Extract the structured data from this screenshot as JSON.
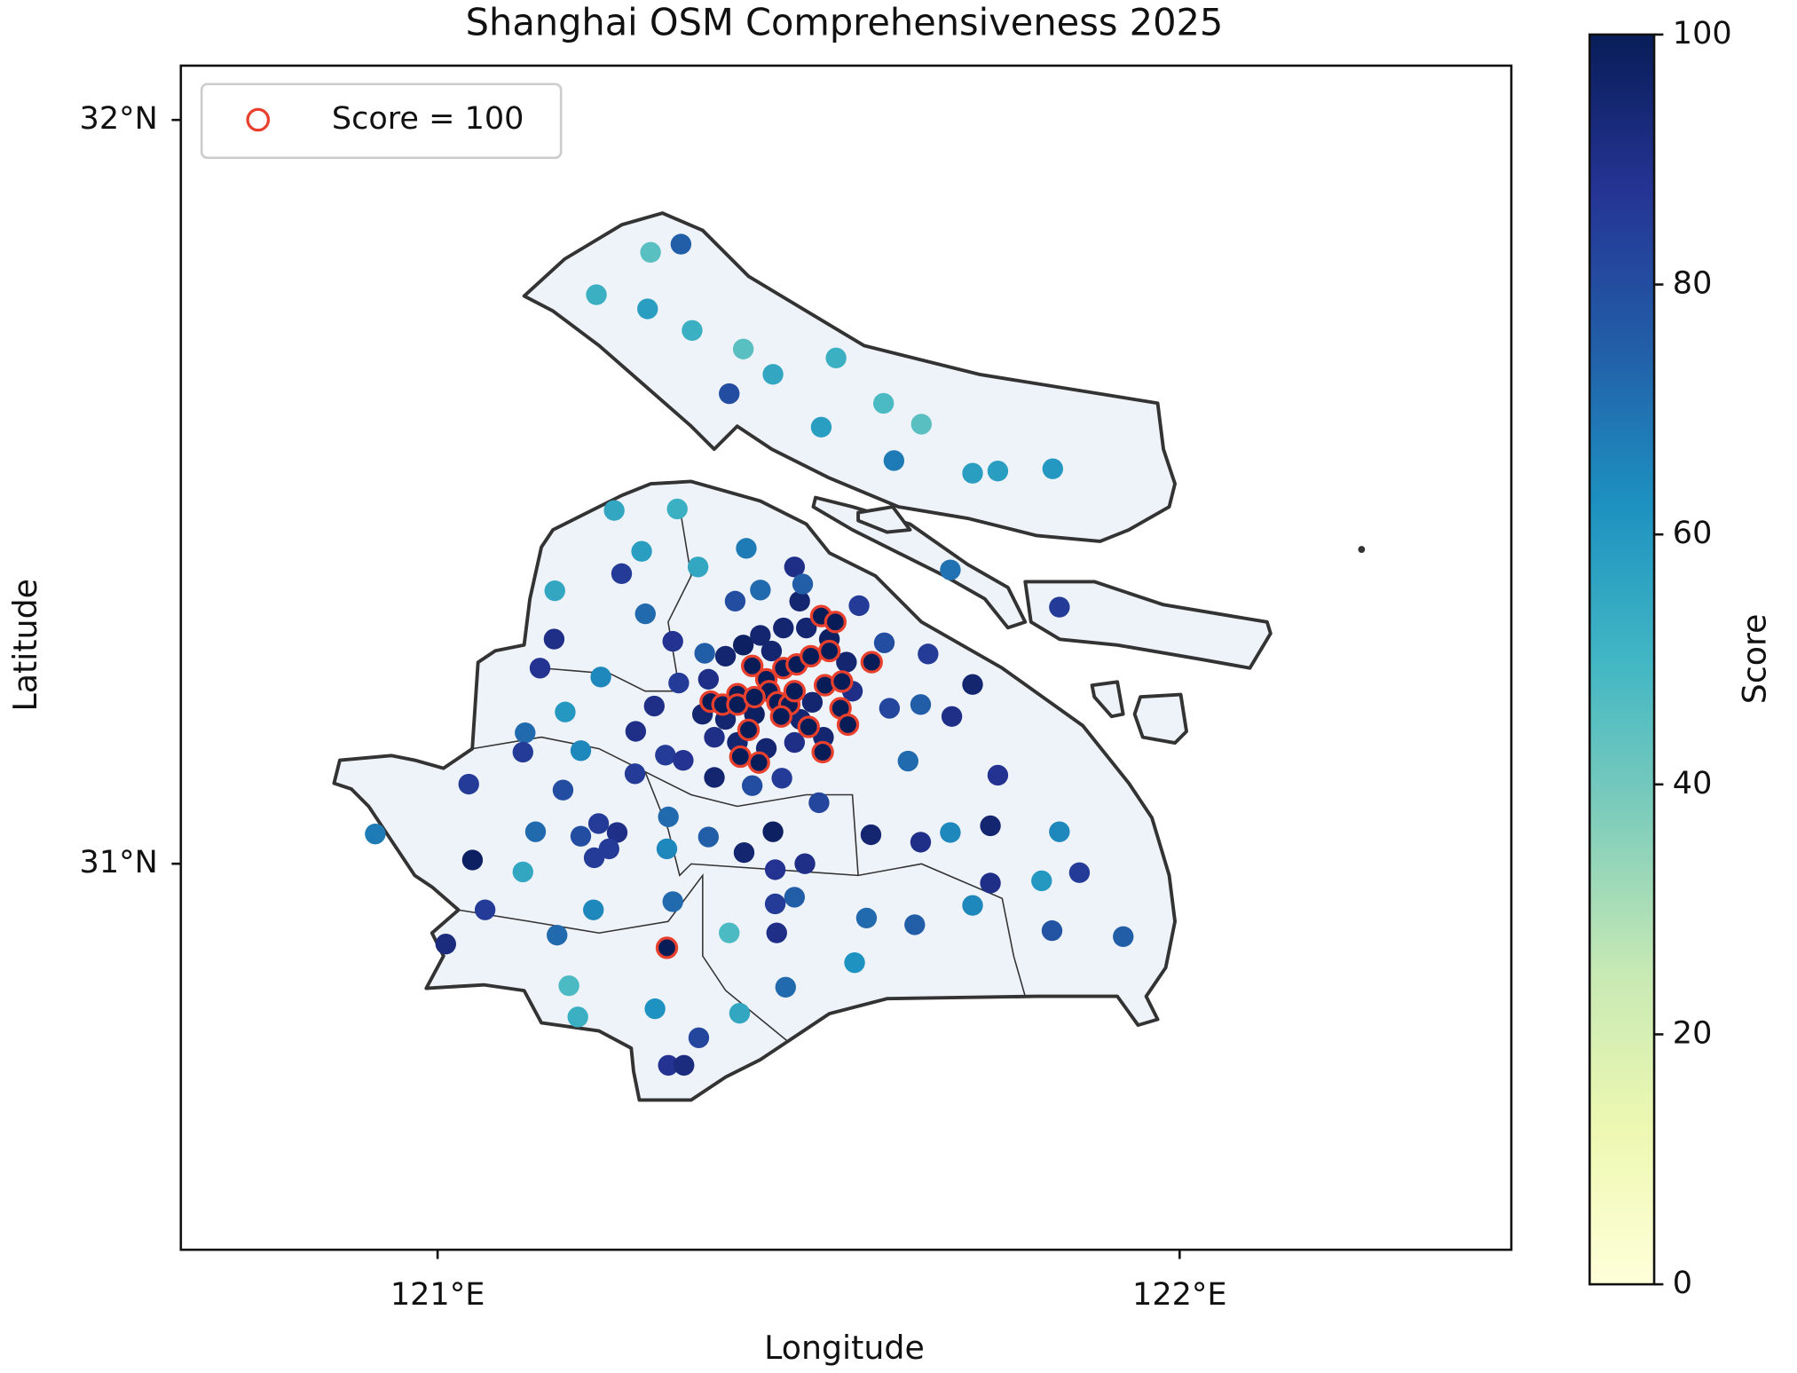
{
  "chart_data": {
    "type": "scatter",
    "title": "Shanghai OSM Comprehensiveness 2025",
    "x_label": "Longitude",
    "y_label": "Latitude",
    "xlim": [
      120.654,
      122.447
    ],
    "ylim": [
      30.481,
      32.073
    ],
    "xticks": [
      {
        "value": 121,
        "label": "121°E"
      },
      {
        "value": 122,
        "label": "122°E"
      }
    ],
    "yticks": [
      {
        "value": 31,
        "label": "31°N"
      },
      {
        "value": 32,
        "label": "32°N"
      }
    ],
    "points": {
      "x": [
        121.287,
        121.328,
        121.214,
        121.283,
        121.343,
        121.412,
        121.452,
        121.537,
        121.393,
        121.601,
        121.652,
        121.517,
        121.615,
        121.721,
        121.755,
        121.829,
        121.238,
        121.323,
        121.275,
        121.351,
        121.416,
        121.481,
        121.248,
        121.158,
        121.28,
        121.401,
        121.435,
        121.488,
        121.492,
        121.568,
        121.157,
        121.317,
        121.36,
        121.602,
        121.661,
        121.138,
        121.22,
        121.325,
        121.691,
        121.838,
        121.721,
        121.292,
        121.609,
        121.651,
        121.693,
        121.172,
        121.267,
        121.118,
        121.115,
        121.193,
        121.307,
        121.331,
        121.042,
        121.169,
        121.266,
        121.373,
        121.424,
        121.464,
        121.514,
        121.634,
        121.755,
        121.311,
        121.217,
        121.242,
        121.193,
        121.132,
        121.365,
        121.452,
        121.584,
        121.651,
        121.691,
        121.745,
        121.838,
        120.916,
        121.047,
        121.231,
        121.211,
        121.309,
        121.413,
        121.495,
        121.115,
        121.455,
        121.745,
        121.814,
        121.865,
        121.064,
        121.21,
        121.317,
        121.481,
        121.455,
        121.721,
        121.578,
        121.643,
        121.161,
        121.393,
        121.457,
        121.828,
        121.924,
        121.011,
        121.562,
        121.177,
        121.469,
        121.293,
        121.407,
        121.189,
        121.352,
        121.311,
        121.332,
        121.388,
        121.412,
        121.435,
        121.466,
        121.497,
        121.528,
        121.551,
        121.559,
        121.365,
        121.357,
        121.373,
        121.404,
        121.443,
        121.481,
        121.52,
        121.388,
        121.427,
        121.489,
        121.505,
        121.45
      ],
      "y": [
        31.822,
        31.833,
        31.765,
        31.746,
        31.717,
        31.692,
        31.658,
        31.68,
        31.632,
        31.619,
        31.591,
        31.587,
        31.542,
        31.525,
        31.528,
        31.531,
        31.475,
        31.477,
        31.42,
        31.399,
        31.424,
        31.399,
        31.39,
        31.367,
        31.336,
        31.353,
        31.368,
        31.353,
        31.376,
        31.347,
        31.302,
        31.299,
        31.283,
        31.297,
        31.282,
        31.263,
        31.251,
        31.243,
        31.395,
        31.345,
        31.241,
        31.212,
        31.209,
        31.214,
        31.198,
        31.204,
        31.178,
        31.176,
        31.15,
        31.152,
        31.146,
        31.139,
        31.107,
        31.099,
        31.121,
        31.116,
        31.105,
        31.115,
        31.082,
        31.138,
        31.119,
        31.063,
        31.054,
        31.042,
        31.037,
        31.043,
        31.036,
        31.043,
        31.039,
        31.029,
        31.042,
        31.051,
        31.043,
        31.04,
        31.005,
        31.02,
        31.008,
        31.02,
        31.015,
        31.0,
        30.989,
        30.992,
        30.974,
        30.977,
        30.988,
        30.938,
        30.938,
        30.949,
        30.955,
        30.946,
        30.944,
        30.927,
        30.918,
        30.904,
        30.907,
        30.907,
        30.91,
        30.902,
        30.892,
        30.867,
        30.836,
        30.834,
        30.805,
        30.799,
        30.794,
        30.766,
        30.729,
        30.729,
        31.279,
        31.294,
        31.307,
        31.317,
        31.317,
        31.302,
        31.271,
        31.232,
        31.248,
        31.201,
        31.17,
        31.163,
        31.155,
        31.163,
        31.17,
        31.194,
        31.201,
        31.194,
        31.217,
        31.286
      ],
      "values": [
        45,
        75,
        52,
        58,
        52,
        45,
        55,
        52,
        80,
        48,
        45,
        58,
        68,
        58,
        58,
        60,
        55,
        52,
        58,
        55,
        68,
        90,
        85,
        55,
        72,
        80,
        72,
        95,
        75,
        85,
        90,
        88,
        75,
        80,
        85,
        88,
        65,
        85,
        70,
        85,
        95,
        90,
        82,
        75,
        90,
        60,
        90,
        72,
        85,
        65,
        85,
        88,
        85,
        80,
        85,
        95,
        80,
        85,
        82,
        72,
        88,
        72,
        85,
        90,
        80,
        72,
        75,
        98,
        95,
        90,
        65,
        95,
        65,
        68,
        98,
        85,
        85,
        65,
        95,
        90,
        55,
        88,
        90,
        60,
        85,
        85,
        65,
        72,
        75,
        85,
        65,
        72,
        75,
        72,
        48,
        90,
        78,
        75,
        92,
        62,
        48,
        72,
        62,
        55,
        52,
        82,
        88,
        92,
        95,
        98,
        95,
        95,
        95,
        98,
        95,
        90,
        90,
        95,
        90,
        95,
        95,
        90,
        95,
        95,
        98,
        95,
        95,
        95
      ]
    },
    "highlight": {
      "name": "Score = 100",
      "color": "#e8402c",
      "x": [
        121.309,
        121.517,
        121.536,
        121.585,
        121.368,
        121.384,
        121.404,
        121.424,
        121.443,
        121.466,
        121.484,
        121.503,
        121.522,
        121.545,
        121.543,
        121.553,
        121.5,
        121.519,
        121.408,
        121.433,
        121.419,
        121.447,
        121.458,
        121.474,
        121.404,
        121.427,
        121.481,
        121.528,
        121.463
      ],
      "y": [
        30.887,
        31.333,
        31.325,
        31.271,
        31.218,
        31.214,
        31.228,
        31.266,
        31.248,
        31.263,
        31.268,
        31.279,
        31.24,
        31.245,
        31.209,
        31.187,
        31.184,
        31.15,
        31.144,
        31.136,
        31.18,
        31.232,
        31.217,
        31.214,
        31.214,
        31.224,
        31.232,
        31.286,
        31.198
      ],
      "values": [
        100,
        100,
        100,
        100,
        100,
        100,
        100,
        100,
        100,
        100,
        100,
        100,
        100,
        100,
        100,
        100,
        100,
        100,
        100,
        100,
        100,
        100,
        100,
        100,
        100,
        100,
        100,
        100,
        100
      ]
    },
    "legend": "upper left",
    "colorbar": {
      "label": "Score",
      "lim": [
        0,
        100
      ],
      "ticks": [
        0,
        20,
        40,
        60,
        80,
        100
      ],
      "colormap": "YlGnBu"
    }
  }
}
